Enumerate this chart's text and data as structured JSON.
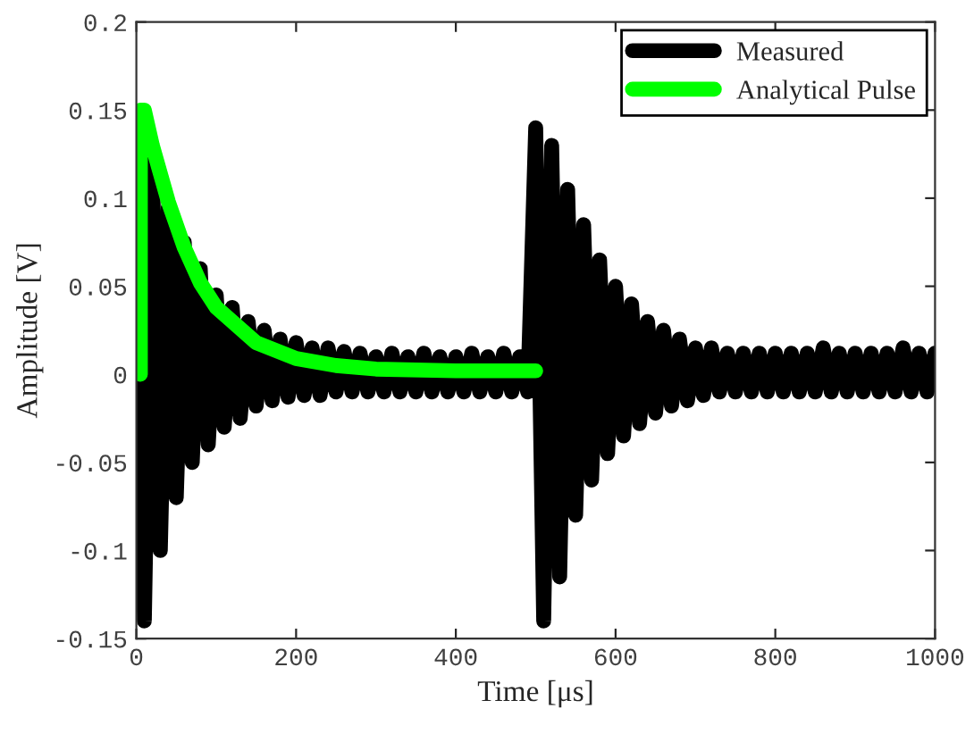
{
  "chart_data": {
    "type": "line",
    "xlabel": "Time [μs]",
    "ylabel": "Amplitude [V]",
    "xlim": [
      0,
      1000
    ],
    "xticks": [
      0,
      200,
      400,
      600,
      800,
      1000
    ],
    "ylim": [
      -0.15,
      0.2
    ],
    "yticks": [
      -0.15,
      -0.1,
      -0.05,
      0,
      0.05,
      0.1,
      0.15,
      0.2
    ],
    "grid": false,
    "legend": "top right",
    "marker": "none",
    "line_style": "solid",
    "series": [
      {
        "name": "Measured",
        "color": "#000000",
        "x": [
          0,
          10,
          20,
          30,
          40,
          50,
          60,
          70,
          80,
          90,
          100,
          110,
          120,
          130,
          140,
          150,
          160,
          170,
          180,
          190,
          200,
          210,
          220,
          230,
          240,
          250,
          260,
          270,
          280,
          290,
          300,
          310,
          320,
          330,
          340,
          350,
          360,
          370,
          380,
          390,
          400,
          410,
          420,
          430,
          440,
          450,
          460,
          470,
          480,
          490,
          500,
          510,
          520,
          530,
          540,
          550,
          560,
          570,
          580,
          590,
          600,
          610,
          620,
          630,
          640,
          650,
          660,
          670,
          680,
          690,
          700,
          710,
          720,
          730,
          740,
          750,
          760,
          770,
          780,
          790,
          800,
          810,
          820,
          830,
          840,
          850,
          860,
          870,
          880,
          890,
          900,
          910,
          920,
          930,
          940,
          950,
          960,
          970,
          980,
          990,
          1000
        ],
        "values": [
          0.13,
          -0.14,
          0.12,
          -0.1,
          0.095,
          -0.07,
          0.075,
          -0.05,
          0.06,
          -0.04,
          0.045,
          -0.03,
          0.038,
          -0.025,
          0.03,
          -0.018,
          0.025,
          -0.015,
          0.02,
          -0.013,
          0.018,
          -0.012,
          0.015,
          -0.012,
          0.015,
          -0.01,
          0.013,
          -0.01,
          0.012,
          -0.01,
          0.01,
          -0.01,
          0.012,
          -0.01,
          0.01,
          -0.01,
          0.012,
          -0.01,
          0.01,
          -0.01,
          0.01,
          -0.01,
          0.012,
          -0.01,
          0.01,
          -0.01,
          0.012,
          -0.01,
          0.01,
          -0.01,
          0.14,
          -0.14,
          0.13,
          -0.115,
          0.105,
          -0.08,
          0.085,
          -0.06,
          0.065,
          -0.045,
          0.05,
          -0.035,
          0.04,
          -0.028,
          0.03,
          -0.022,
          0.025,
          -0.018,
          0.02,
          -0.015,
          0.015,
          -0.012,
          0.015,
          -0.01,
          0.012,
          -0.01,
          0.012,
          -0.01,
          0.012,
          -0.01,
          0.012,
          -0.01,
          0.012,
          -0.01,
          0.012,
          -0.01,
          0.015,
          -0.01,
          0.012,
          -0.01,
          0.012,
          -0.01,
          0.012,
          -0.01,
          0.012,
          -0.01,
          0.015,
          -0.01,
          0.012,
          -0.01,
          0.012
        ]
      },
      {
        "name": "Analytical Pulse",
        "color": "#00ff00",
        "x": [
          5,
          5,
          10,
          20,
          40,
          60,
          80,
          100,
          150,
          200,
          250,
          300,
          400,
          500
        ],
        "values": [
          0,
          0.15,
          0.15,
          0.13,
          0.098,
          0.072,
          0.052,
          0.038,
          0.018,
          0.009,
          0.005,
          0.003,
          0.002,
          0.002
        ]
      }
    ]
  }
}
